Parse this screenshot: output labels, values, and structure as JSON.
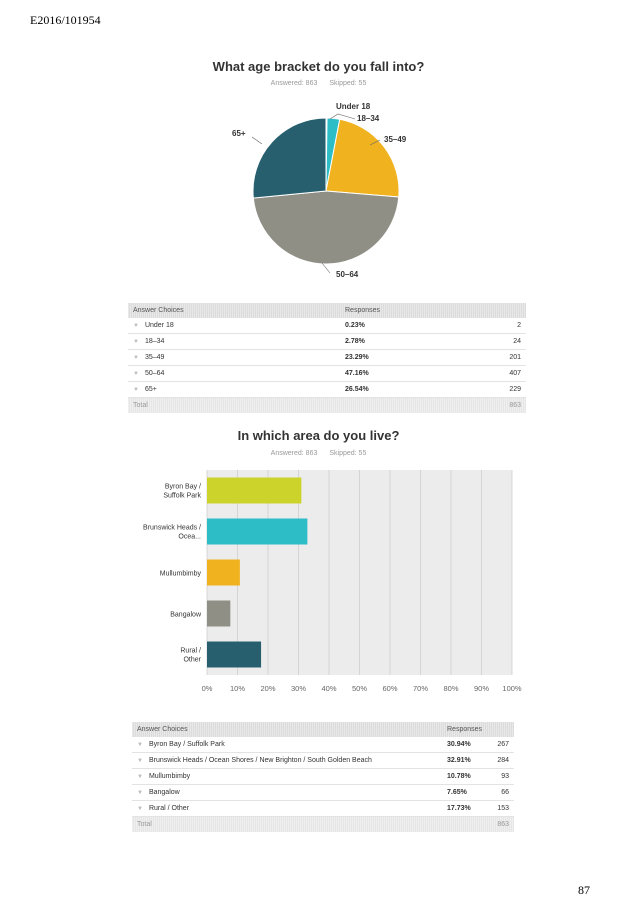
{
  "page": {
    "doc_id": "E2016/101954",
    "page_number": "87"
  },
  "colors": {
    "teal": "#2cbdc6",
    "gold": "#f0b21e",
    "grey": "#8f8f86",
    "navy": "#275f6f",
    "lime": "#ccd42c"
  },
  "chart_data": [
    {
      "type": "pie",
      "title": "What age bracket do you fall into?",
      "answered": "Answered: 863",
      "skipped": "Skipped: 55",
      "slices": [
        {
          "label": "Under 18",
          "value": 0.23,
          "color": "#275f6f"
        },
        {
          "label": "18–34",
          "value": 2.78,
          "color": "#2cbdc6"
        },
        {
          "label": "35–49",
          "value": 23.29,
          "color": "#f0b21e"
        },
        {
          "label": "50–64",
          "value": 47.16,
          "color": "#8f8f86"
        },
        {
          "label": "65+",
          "value": 26.54,
          "color": "#275f6f"
        }
      ]
    },
    {
      "type": "bar",
      "orientation": "horizontal",
      "title": "In which area do you live?",
      "answered": "Answered: 863",
      "skipped": "Skipped: 55",
      "categories": [
        "Byron Bay / Suffolk Park",
        "Brunswick Heads / Ocea...",
        "Mullumbimby",
        "Bangalow",
        "Rural / Other"
      ],
      "values": [
        30.94,
        32.91,
        10.78,
        7.65,
        17.73
      ],
      "colors": [
        "#ccd42c",
        "#2cbdc6",
        "#f0b21e",
        "#8f8f86",
        "#275f6f"
      ],
      "xlim": [
        0,
        100
      ],
      "x_ticks": [
        "0%",
        "10%",
        "20%",
        "30%",
        "40%",
        "50%",
        "60%",
        "70%",
        "80%",
        "90%",
        "100%"
      ],
      "grid": true
    }
  ],
  "table1": {
    "headers": [
      "Answer Choices",
      "Responses"
    ],
    "rows": [
      {
        "choice": "Under 18",
        "pct": "0.23%",
        "count": "2"
      },
      {
        "choice": "18–34",
        "pct": "2.78%",
        "count": "24"
      },
      {
        "choice": "35–49",
        "pct": "23.29%",
        "count": "201"
      },
      {
        "choice": "50–64",
        "pct": "47.16%",
        "count": "407"
      },
      {
        "choice": "65+",
        "pct": "26.54%",
        "count": "229"
      }
    ],
    "total_label": "Total",
    "total": "863"
  },
  "table2": {
    "headers": [
      "Answer Choices",
      "Responses"
    ],
    "rows": [
      {
        "choice": "Byron Bay / Suffolk Park",
        "pct": "30.94%",
        "count": "267"
      },
      {
        "choice": "Brunswick Heads / Ocean Shores / New Brighton / South Golden Beach",
        "pct": "32.91%",
        "count": "284"
      },
      {
        "choice": "Mullumbimby",
        "pct": "10.78%",
        "count": "93"
      },
      {
        "choice": "Bangalow",
        "pct": "7.65%",
        "count": "66"
      },
      {
        "choice": "Rural / Other",
        "pct": "17.73%",
        "count": "153"
      }
    ],
    "total_label": "Total",
    "total": "863"
  }
}
